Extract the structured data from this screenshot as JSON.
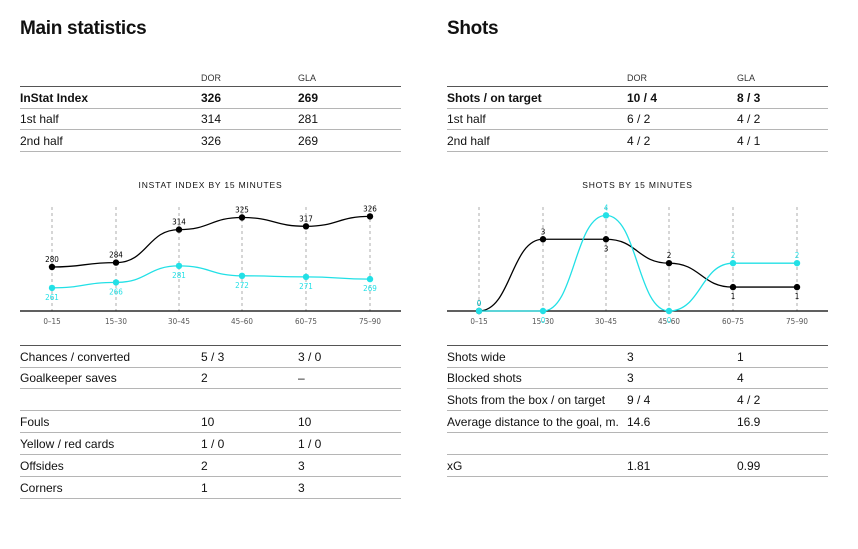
{
  "left": {
    "title": "Main statistics",
    "teams": [
      "DOR",
      "GLA"
    ],
    "main_table": [
      {
        "label": "InStat Index",
        "a": "326",
        "b": "269",
        "bold": true
      },
      {
        "label": "1st half",
        "a": "314",
        "b": "281"
      },
      {
        "label": "2nd half",
        "a": "326",
        "b": "269"
      }
    ],
    "chart_title": "INSTAT INDEX BY 15 MINUTES",
    "bottom_table": [
      {
        "label": "Chances / converted",
        "a": "5 / 3",
        "b": "3 / 0"
      },
      {
        "label": "Goalkeeper saves",
        "a": "2",
        "b": "–"
      },
      {
        "label": "",
        "a": "",
        "b": ""
      },
      {
        "label": "Fouls",
        "a": "10",
        "b": "10"
      },
      {
        "label": "Yellow / red cards",
        "a": "1 / 0",
        "b": "1 / 0"
      },
      {
        "label": "Offsides",
        "a": "2",
        "b": "3"
      },
      {
        "label": "Corners",
        "a": "1",
        "b": "3"
      }
    ]
  },
  "right": {
    "title": "Shots",
    "teams": [
      "DOR",
      "GLA"
    ],
    "main_table": [
      {
        "label": "Shots / on target",
        "a": "10 / 4",
        "b": "8 / 3",
        "bold": true
      },
      {
        "label": "1st half",
        "a": "6 / 2",
        "b": "4 / 2"
      },
      {
        "label": "2nd half",
        "a": "4 / 2",
        "b": "4 / 1"
      }
    ],
    "chart_title": "SHOTS BY 15 MINUTES",
    "bottom_table": [
      {
        "label": "Shots wide",
        "a": "3",
        "b": "1"
      },
      {
        "label": "Blocked shots",
        "a": "3",
        "b": "4"
      },
      {
        "label": "Shots from the box / on target",
        "a": "9 / 4",
        "b": "4 / 2"
      },
      {
        "label": "Average distance to the goal, m.",
        "a": "14.6",
        "b": "16.9"
      },
      {
        "label": "",
        "a": "",
        "b": ""
      },
      {
        "label": "xG",
        "a": "1.81",
        "b": "0.99"
      }
    ]
  },
  "colors": {
    "dor": "#000000",
    "gla": "#22e0e6",
    "grid": "#9a9a9a"
  },
  "chart_data": [
    {
      "type": "line",
      "title": "INSTAT INDEX BY 15 MINUTES",
      "categories": [
        "0–15",
        "15–30",
        "30–45",
        "45–60",
        "60–75",
        "75–90"
      ],
      "ylim": [
        240,
        340
      ],
      "series": [
        {
          "name": "DOR",
          "values": [
            280,
            284,
            314,
            325,
            317,
            326
          ]
        },
        {
          "name": "GLA",
          "values": [
            261,
            266,
            281,
            272,
            271,
            269
          ]
        }
      ]
    },
    {
      "type": "line",
      "title": "SHOTS BY 15 MINUTES",
      "categories": [
        "0–15",
        "15–30",
        "30–45",
        "45–60",
        "60–75",
        "75–90"
      ],
      "ylim": [
        0,
        4.6
      ],
      "series": [
        {
          "name": "DOR",
          "values": [
            0,
            3,
            3,
            2,
            1,
            1
          ]
        },
        {
          "name": "GLA",
          "values": [
            0,
            0,
            4,
            0,
            2,
            2
          ]
        }
      ]
    }
  ]
}
